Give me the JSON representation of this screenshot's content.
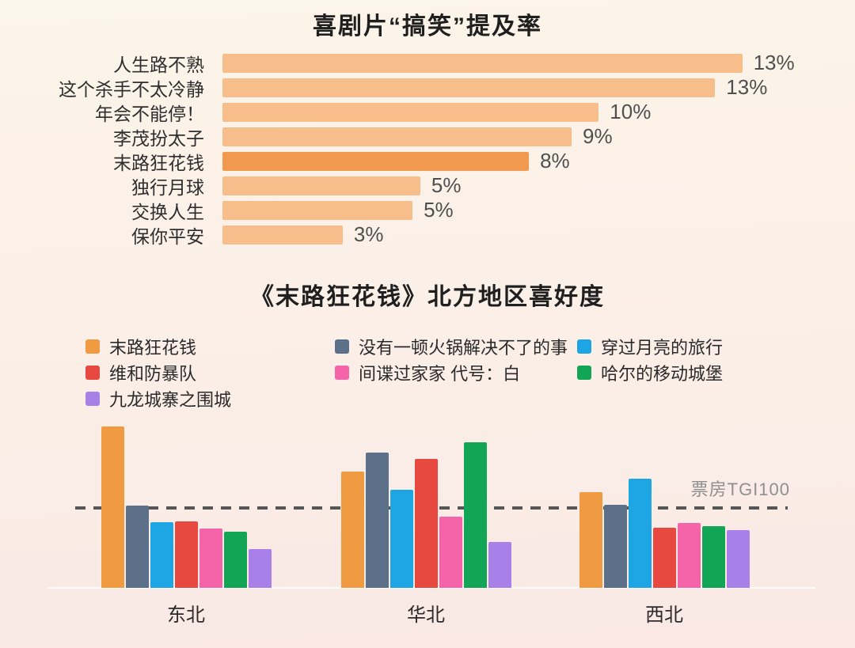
{
  "background": {
    "top": "#FCF5E9",
    "bottom": "#F9E8E4"
  },
  "chart_data": [
    {
      "type": "bar",
      "orientation": "horizontal",
      "title": "喜剧片“搞笑”提及率",
      "categories": [
        "人生路不熟",
        "这个杀手不太冷静",
        "年会不能停！",
        "李茂扮太子",
        "末路狂花钱",
        "独行月球",
        "交换人生",
        "保你平安"
      ],
      "values": [
        13.4,
        12.7,
        9.7,
        9.0,
        7.9,
        5.1,
        4.9,
        3.1
      ],
      "value_labels": [
        "13%",
        "13%",
        "10%",
        "9%",
        "8%",
        "5%",
        "5%",
        "3%"
      ],
      "bar_color": "#F7BE8C",
      "highlight_index": 4,
      "highlight_color": "#F1994E",
      "xlabel": "",
      "ylabel": "",
      "xlim": [
        0,
        14
      ],
      "grid": false
    },
    {
      "type": "bar",
      "orientation": "vertical",
      "grouped": true,
      "title": "《末路狂花钱》北方地区喜好度",
      "categories": [
        "东北",
        "华北",
        "西北"
      ],
      "series": [
        {
          "name": "末路狂花钱",
          "color": "#F09A42",
          "values": [
            202,
            146,
            120
          ]
        },
        {
          "name": "没有一顿火锅解决不了的事",
          "color": "#5C7089",
          "values": [
            103,
            169,
            104
          ]
        },
        {
          "name": "穿过月亮的旅行",
          "color": "#1EA6E4",
          "values": [
            82,
            123,
            137
          ]
        },
        {
          "name": "维和防暴队",
          "color": "#E74840",
          "values": [
            83,
            161,
            75
          ]
        },
        {
          "name": "间谍过家家 代号：白",
          "color": "#F563A8",
          "values": [
            74,
            89,
            81
          ]
        },
        {
          "name": "哈尔的移动城堡",
          "color": "#13A556",
          "values": [
            70,
            182,
            77
          ]
        },
        {
          "name": "九龙城寨之围城",
          "color": "#A980E8",
          "values": [
            49,
            57,
            72
          ]
        }
      ],
      "reference_line": {
        "label": "票房TGI100",
        "value": 100
      },
      "legend_columns": [
        [
          0,
          3,
          6
        ],
        [
          1,
          4
        ],
        [
          2,
          5
        ]
      ],
      "ylabel": "",
      "grid": false,
      "legend_position": "top"
    }
  ]
}
